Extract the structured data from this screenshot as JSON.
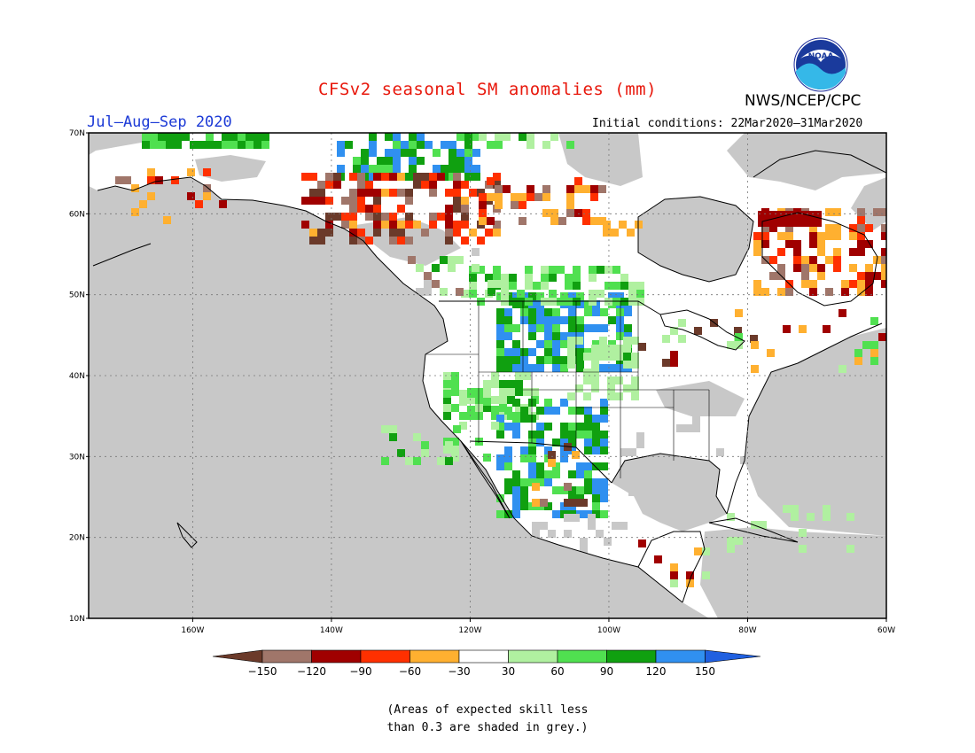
{
  "title": "CFSv2 seasonal SM anomalies (mm)",
  "agency": "NWS/NCEP/CPC",
  "logo_text": "NOAA",
  "season": "Jul–Aug–Sep 2020",
  "initial_conditions": "Initial conditions: 22Mar2020–31Mar2020",
  "map": {
    "lon_range": [
      -175,
      -60
    ],
    "lat_range": [
      10,
      70
    ],
    "lon_ticks": [
      "160W",
      "140W",
      "120W",
      "100W",
      "80W",
      "60W"
    ],
    "lat_ticks": [
      "70N",
      "60N",
      "50N",
      "40N",
      "30N",
      "20N",
      "10N"
    ],
    "grid": "dotted"
  },
  "colorbar": {
    "labels": [
      "−150",
      "−120",
      "−90",
      "−60",
      "−30",
      "30",
      "60",
      "90",
      "120",
      "150"
    ],
    "colors": [
      "#6b3a2a",
      "#a0766a",
      "#a00000",
      "#ff3000",
      "#ffb030",
      "#ffffff",
      "#b0f0a0",
      "#50e050",
      "#10a010",
      "#3090f0",
      "#2060e0"
    ]
  },
  "grey_color": "#c8c8c8",
  "note": {
    "line1": "(Areas of expected skill less",
    "line2": "than 0.3 are shaded in grey.)"
  }
}
